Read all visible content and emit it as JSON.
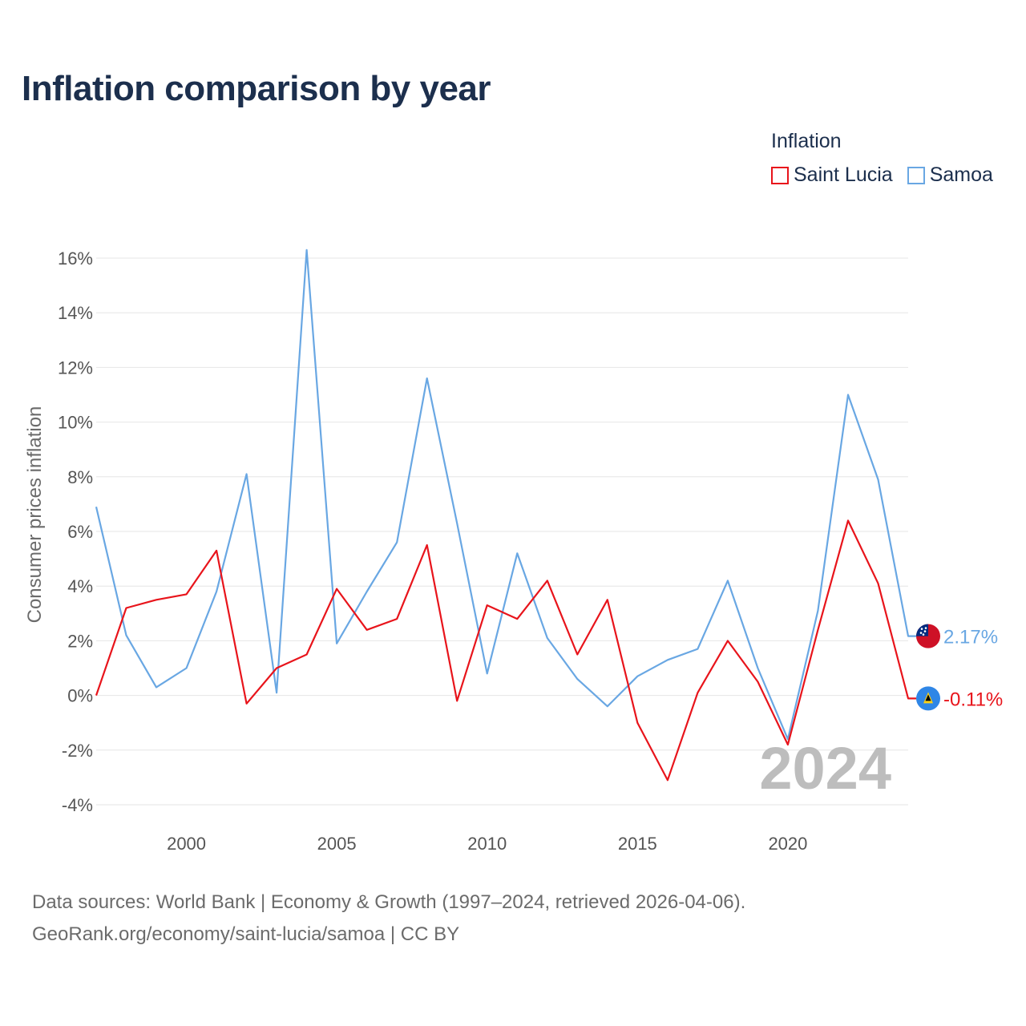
{
  "title": "Inflation comparison by year",
  "legend": {
    "title": "Inflation",
    "items": [
      {
        "label": "Saint Lucia",
        "color": "#e8141b"
      },
      {
        "label": "Samoa",
        "color": "#69a7e3"
      }
    ]
  },
  "footer": {
    "line1": "Data sources: World Bank | Economy & Growth (1997–2024, retrieved 2026-04-06).",
    "line2": "GeoRank.org/economy/saint-lucia/samoa | CC BY"
  },
  "chart_data": {
    "type": "line",
    "title": "Inflation comparison by year",
    "ylabel": "Consumer prices inflation",
    "xlabel": "",
    "x": [
      1997,
      1998,
      1999,
      2000,
      2001,
      2002,
      2003,
      2004,
      2005,
      2006,
      2007,
      2008,
      2009,
      2010,
      2011,
      2012,
      2013,
      2014,
      2015,
      2016,
      2017,
      2018,
      2019,
      2020,
      2021,
      2022,
      2023,
      2024
    ],
    "xlim": [
      1997,
      2024
    ],
    "ylim": [
      -4,
      16
    ],
    "x_ticks": [
      2000,
      2005,
      2010,
      2015,
      2020
    ],
    "x_tick_labels": [
      "2000",
      "2005",
      "2010",
      "2015",
      "2020"
    ],
    "y_ticks": [
      -4,
      -2,
      0,
      2,
      4,
      6,
      8,
      10,
      12,
      14,
      16
    ],
    "y_tick_labels": [
      "-4%",
      "-2%",
      "0%",
      "2%",
      "4%",
      "6%",
      "8%",
      "10%",
      "12%",
      "14%",
      "16%"
    ],
    "grid": true,
    "year_label": "2024",
    "series": [
      {
        "name": "Saint Lucia",
        "color": "#e8141b",
        "end_label": "-0.11%",
        "flag": "saint-lucia-flag",
        "values": [
          0.0,
          3.2,
          3.5,
          3.7,
          5.3,
          -0.3,
          1.0,
          1.5,
          3.9,
          2.4,
          2.8,
          5.5,
          -0.2,
          3.3,
          2.8,
          4.2,
          1.5,
          3.5,
          -1.0,
          -3.1,
          0.1,
          2.0,
          0.5,
          -1.8,
          2.4,
          6.4,
          4.1,
          -0.11
        ]
      },
      {
        "name": "Samoa",
        "color": "#69a7e3",
        "end_label": "2.17%",
        "flag": "samoa-flag",
        "values": [
          6.9,
          2.2,
          0.3,
          1.0,
          3.8,
          8.1,
          0.1,
          16.3,
          1.9,
          3.8,
          5.6,
          11.6,
          6.3,
          0.8,
          5.2,
          2.1,
          0.6,
          -0.4,
          0.7,
          1.3,
          1.7,
          4.2,
          1.0,
          -1.6,
          3.1,
          11.0,
          7.9,
          2.17
        ]
      }
    ]
  }
}
